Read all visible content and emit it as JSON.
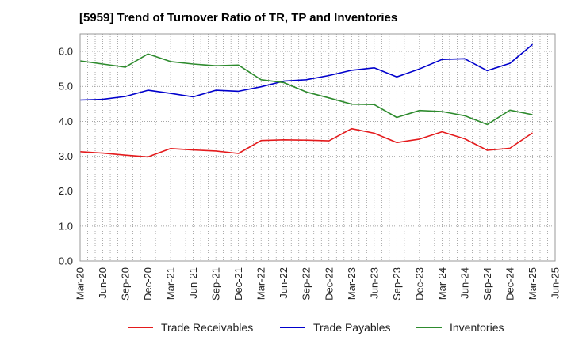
{
  "chart_data": {
    "type": "line",
    "title": "[5959]  Trend of Turnover Ratio of TR, TP and Inventories",
    "xlabel": "",
    "ylabel": "",
    "ylim": [
      0,
      6.5
    ],
    "yticks": [
      "0.0",
      "1.0",
      "2.0",
      "3.0",
      "4.0",
      "5.0",
      "6.0"
    ],
    "grid": true,
    "legend_position": "bottom",
    "categories": [
      "Mar-20",
      "Jun-20",
      "Sep-20",
      "Dec-20",
      "Mar-21",
      "Jun-21",
      "Sep-21",
      "Dec-21",
      "Mar-22",
      "Jun-22",
      "Sep-22",
      "Dec-22",
      "Mar-23",
      "Jun-23",
      "Sep-23",
      "Dec-23",
      "Mar-24",
      "Jun-24",
      "Sep-24",
      "Dec-24",
      "Mar-25",
      "Jun-25"
    ],
    "series": [
      {
        "name": "Trade Receivables",
        "color": "#e41a1c",
        "values": [
          3.13,
          3.09,
          3.03,
          2.98,
          3.22,
          3.18,
          3.15,
          3.08,
          3.45,
          3.47,
          3.46,
          3.44,
          3.79,
          3.66,
          3.39,
          3.49,
          3.7,
          3.5,
          3.17,
          3.23,
          3.67,
          null
        ]
      },
      {
        "name": "Trade Payables",
        "color": "#0000cc",
        "values": [
          4.61,
          4.63,
          4.71,
          4.89,
          4.8,
          4.7,
          4.89,
          4.86,
          4.99,
          5.15,
          5.19,
          5.31,
          5.46,
          5.53,
          5.27,
          5.5,
          5.77,
          5.79,
          5.45,
          5.66,
          6.2,
          null
        ]
      },
      {
        "name": "Inventories",
        "color": "#2e8b2e",
        "values": [
          5.73,
          5.64,
          5.55,
          5.93,
          5.71,
          5.64,
          5.59,
          5.61,
          5.19,
          5.11,
          4.84,
          4.67,
          4.49,
          4.48,
          4.11,
          4.31,
          4.28,
          4.16,
          3.91,
          4.32,
          4.19,
          null
        ]
      }
    ]
  }
}
